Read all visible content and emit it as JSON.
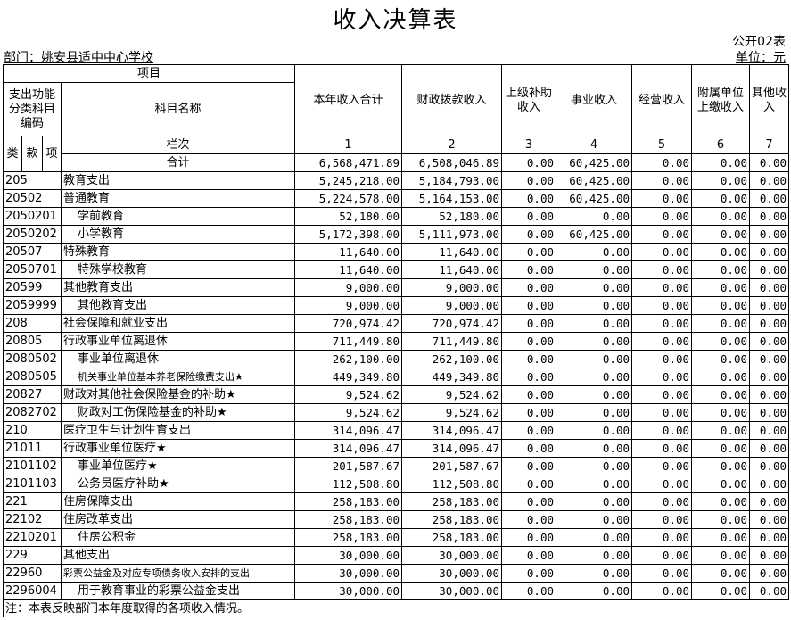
{
  "title": "收入决算表",
  "form_code": "公开02表",
  "unit": "单位：元",
  "department": "部门：姚安县适中中心学校",
  "header": {
    "item": "项目",
    "code_group": "支出功能分类科目编码",
    "name": "科目名称",
    "lei": "类",
    "kuan": "款",
    "xiang": "项",
    "column_no": "栏次",
    "total": "合计",
    "columns": [
      "本年收入合计",
      "财政拨款收入",
      "上级补助收入",
      "事业收入",
      "经营收入",
      "附属单位上缴收入",
      "其他收入"
    ],
    "numbers": [
      "1",
      "2",
      "3",
      "4",
      "5",
      "6",
      "7"
    ]
  },
  "total_values": [
    "6,568,471.89",
    "6,508,046.89",
    "0.00",
    "60,425.00",
    "0.00",
    "0.00",
    "0.00"
  ],
  "rows": [
    {
      "code": "205",
      "name": "教育支出",
      "v": [
        "5,245,218.00",
        "5,184,793.00",
        "0.00",
        "60,425.00",
        "0.00",
        "0.00",
        "0.00"
      ]
    },
    {
      "code": "20502",
      "name": "普通教育",
      "v": [
        "5,224,578.00",
        "5,164,153.00",
        "0.00",
        "60,425.00",
        "0.00",
        "0.00",
        "0.00"
      ]
    },
    {
      "code": "2050201",
      "name": "学前教育",
      "v": [
        "52,180.00",
        "52,180.00",
        "0.00",
        "0.00",
        "0.00",
        "0.00",
        "0.00"
      ]
    },
    {
      "code": "2050202",
      "name": "小学教育",
      "v": [
        "5,172,398.00",
        "5,111,973.00",
        "0.00",
        "60,425.00",
        "0.00",
        "0.00",
        "0.00"
      ]
    },
    {
      "code": "20507",
      "name": "特殊教育",
      "v": [
        "11,640.00",
        "11,640.00",
        "0.00",
        "0.00",
        "0.00",
        "0.00",
        "0.00"
      ]
    },
    {
      "code": "2050701",
      "name": "特殊学校教育",
      "v": [
        "11,640.00",
        "11,640.00",
        "0.00",
        "0.00",
        "0.00",
        "0.00",
        "0.00"
      ]
    },
    {
      "code": "20599",
      "name": "其他教育支出",
      "v": [
        "9,000.00",
        "9,000.00",
        "0.00",
        "0.00",
        "0.00",
        "0.00",
        "0.00"
      ]
    },
    {
      "code": "2059999",
      "name": "其他教育支出",
      "v": [
        "9,000.00",
        "9,000.00",
        "0.00",
        "0.00",
        "0.00",
        "0.00",
        "0.00"
      ]
    },
    {
      "code": "208",
      "name": "社会保障和就业支出",
      "v": [
        "720,974.42",
        "720,974.42",
        "0.00",
        "0.00",
        "0.00",
        "0.00",
        "0.00"
      ]
    },
    {
      "code": "20805",
      "name": "行政事业单位离退休",
      "v": [
        "711,449.80",
        "711,449.80",
        "0.00",
        "0.00",
        "0.00",
        "0.00",
        "0.00"
      ]
    },
    {
      "code": "2080502",
      "name": "事业单位离退休",
      "v": [
        "262,100.00",
        "262,100.00",
        "0.00",
        "0.00",
        "0.00",
        "0.00",
        "0.00"
      ]
    },
    {
      "code": "2080505",
      "name": "机关事业单位基本养老保险缴费支出★",
      "v": [
        "449,349.80",
        "449,349.80",
        "0.00",
        "0.00",
        "0.00",
        "0.00",
        "0.00"
      ]
    },
    {
      "code": "20827",
      "name": "财政对其他社会保险基金的补助★",
      "v": [
        "9,524.62",
        "9,524.62",
        "0.00",
        "0.00",
        "0.00",
        "0.00",
        "0.00"
      ]
    },
    {
      "code": "2082702",
      "name": "财政对工伤保险基金的补助★",
      "v": [
        "9,524.62",
        "9,524.62",
        "0.00",
        "0.00",
        "0.00",
        "0.00",
        "0.00"
      ]
    },
    {
      "code": "210",
      "name": "医疗卫生与计划生育支出",
      "v": [
        "314,096.47",
        "314,096.47",
        "0.00",
        "0.00",
        "0.00",
        "0.00",
        "0.00"
      ]
    },
    {
      "code": "21011",
      "name": "行政事业单位医疗★",
      "v": [
        "314,096.47",
        "314,096.47",
        "0.00",
        "0.00",
        "0.00",
        "0.00",
        "0.00"
      ]
    },
    {
      "code": "2101102",
      "name": "事业单位医疗★",
      "v": [
        "201,587.67",
        "201,587.67",
        "0.00",
        "0.00",
        "0.00",
        "0.00",
        "0.00"
      ]
    },
    {
      "code": "2101103",
      "name": "公务员医疗补助★",
      "v": [
        "112,508.80",
        "112,508.80",
        "0.00",
        "0.00",
        "0.00",
        "0.00",
        "0.00"
      ]
    },
    {
      "code": "221",
      "name": "住房保障支出",
      "v": [
        "258,183.00",
        "258,183.00",
        "0.00",
        "0.00",
        "0.00",
        "0.00",
        "0.00"
      ]
    },
    {
      "code": "22102",
      "name": "住房改革支出",
      "v": [
        "258,183.00",
        "258,183.00",
        "0.00",
        "0.00",
        "0.00",
        "0.00",
        "0.00"
      ]
    },
    {
      "code": "2210201",
      "name": "住房公积金",
      "v": [
        "258,183.00",
        "258,183.00",
        "0.00",
        "0.00",
        "0.00",
        "0.00",
        "0.00"
      ]
    },
    {
      "code": "229",
      "name": "其他支出",
      "v": [
        "30,000.00",
        "30,000.00",
        "0.00",
        "0.00",
        "0.00",
        "0.00",
        "0.00"
      ]
    },
    {
      "code": "22960",
      "name": "彩票公益金及对应专项债务收入安排的支出",
      "v": [
        "30,000.00",
        "30,000.00",
        "0.00",
        "0.00",
        "0.00",
        "0.00",
        "0.00"
      ]
    },
    {
      "code": "2296004",
      "name": "用于教育事业的彩票公益金支出",
      "v": [
        "30,000.00",
        "30,000.00",
        "0.00",
        "0.00",
        "0.00",
        "0.00",
        "0.00"
      ]
    }
  ],
  "note": "注：本表反映部门本年度取得的各项收入情况。"
}
